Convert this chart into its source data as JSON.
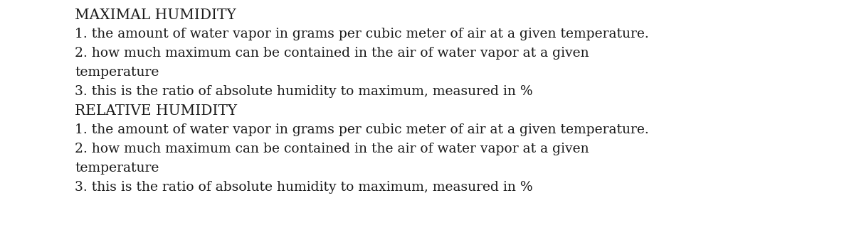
{
  "background_color": "#ffffff",
  "text_color": "#1a1a1a",
  "title_color": "#1a1a1a",
  "title_fontsize": 14.5,
  "body_fontsize": 13.5,
  "sections": [
    {
      "title": "MAXIMAL HUMIDITY",
      "items": [
        "1. the amount of water vapor in grams per cubic meter of air at a given temperature.",
        "2. how much maximum can be contained in the air of water vapor at a given\ntemperature",
        "3. this is the ratio of absolute humidity to maximum, measured in %"
      ]
    },
    {
      "title": "RELATIVE HUMIDITY",
      "items": [
        "1. the amount of water vapor in grams per cubic meter of air at a given temperature.",
        "2. how much maximum can be contained in the air of water vapor at a given\ntemperature",
        "3. this is the ratio of absolute humidity to maximum, measured in %"
      ]
    }
  ]
}
